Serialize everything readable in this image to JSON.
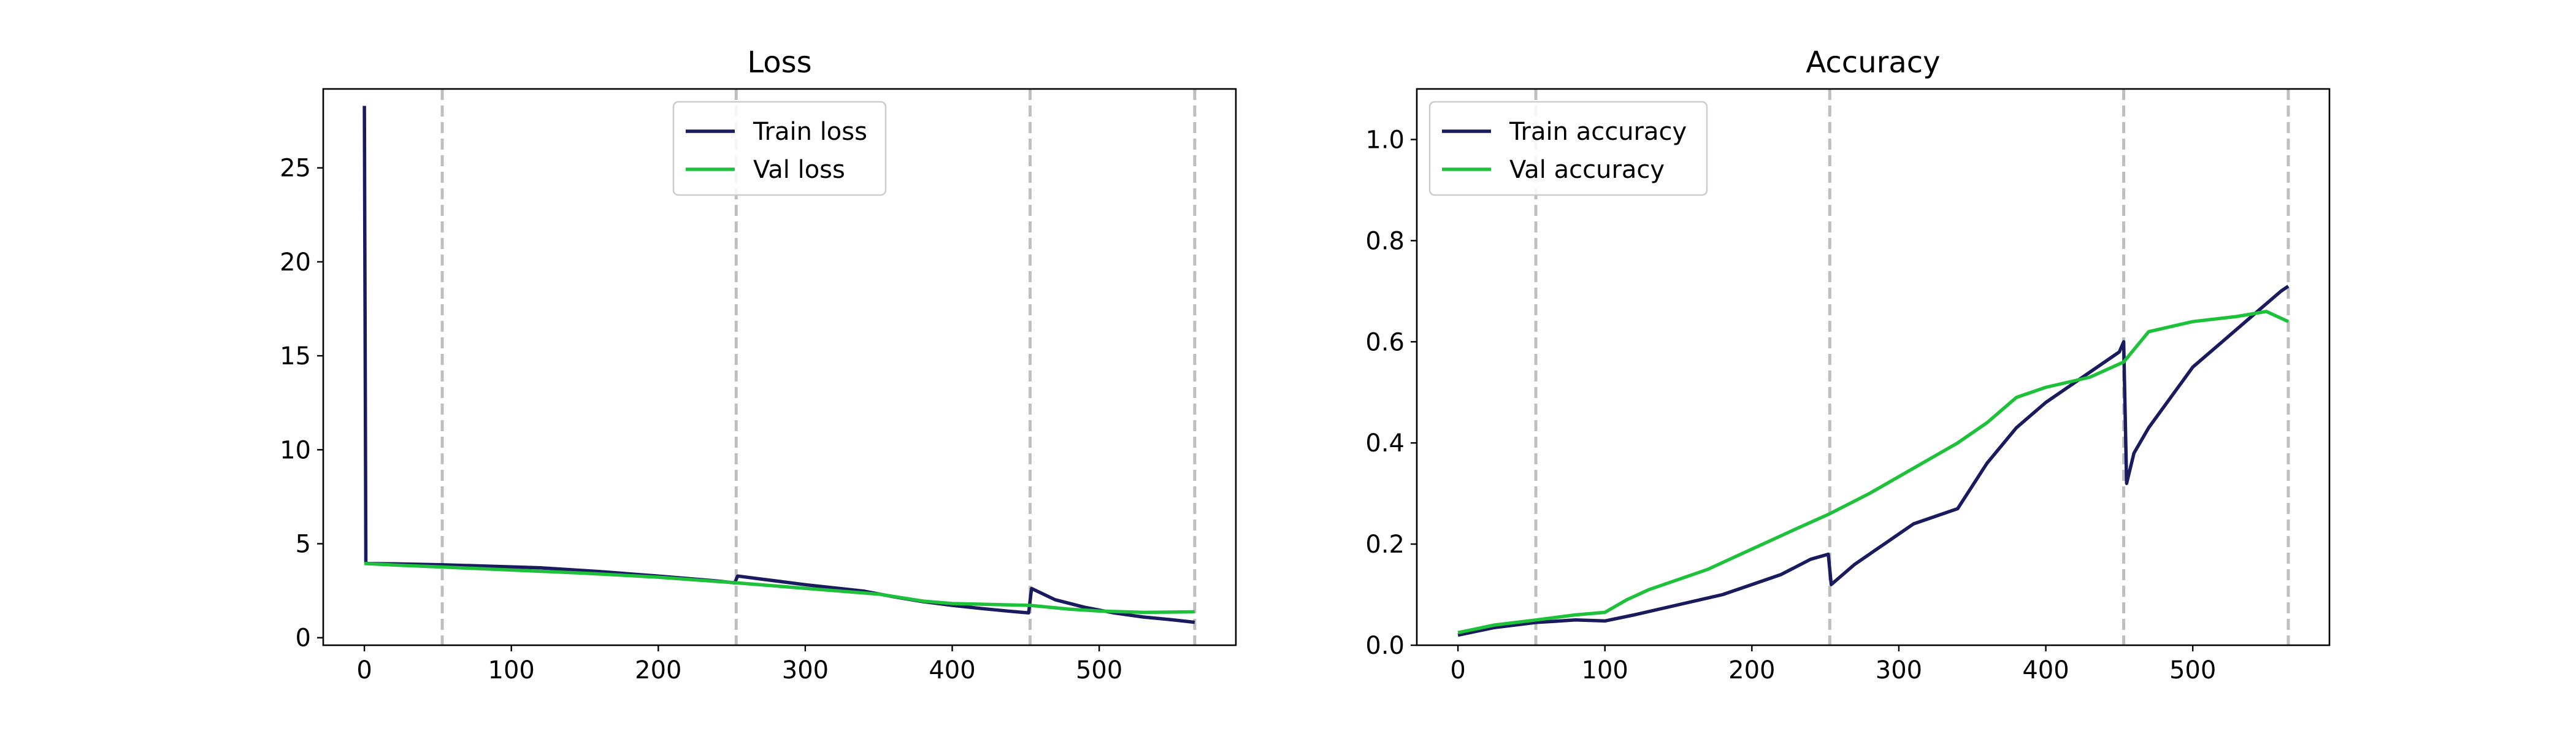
{
  "figure": {
    "background": "#ffffff",
    "axis_color": "#000000",
    "epoch_marker_color": "#bfbfbf"
  },
  "chart_data": [
    {
      "type": "line",
      "title": "Loss",
      "xlabel": "",
      "ylabel": "",
      "xlim": [
        -28,
        593
      ],
      "ylim": [
        -0.4,
        29.2
      ],
      "xticks": [
        0,
        100,
        200,
        300,
        400,
        500
      ],
      "yticks": [
        0,
        5,
        10,
        15,
        20,
        25
      ],
      "grid": false,
      "legend_position": "upper center",
      "vlines": [
        53,
        253,
        453,
        565
      ],
      "series": [
        {
          "name": "Train loss",
          "color": "#1a1a5e",
          "x": [
            0,
            1,
            2,
            20,
            53,
            80,
            120,
            160,
            200,
            240,
            252,
            254,
            270,
            300,
            340,
            360,
            380,
            400,
            420,
            440,
            452,
            454,
            470,
            490,
            510,
            530,
            550,
            565
          ],
          "y": [
            28.3,
            4.0,
            3.95,
            3.93,
            3.88,
            3.82,
            3.72,
            3.52,
            3.28,
            3.02,
            2.92,
            3.28,
            3.12,
            2.82,
            2.48,
            2.18,
            1.92,
            1.72,
            1.55,
            1.4,
            1.32,
            2.62,
            2.02,
            1.62,
            1.32,
            1.1,
            0.95,
            0.82
          ]
        },
        {
          "name": "Val loss",
          "color": "#1ec23a",
          "x": [
            0,
            20,
            53,
            100,
            150,
            200,
            253,
            300,
            350,
            380,
            400,
            453,
            480,
            500,
            530,
            565
          ],
          "y": [
            3.95,
            3.87,
            3.76,
            3.6,
            3.43,
            3.22,
            2.92,
            2.63,
            2.32,
            1.95,
            1.82,
            1.72,
            1.52,
            1.42,
            1.35,
            1.38
          ]
        }
      ]
    },
    {
      "type": "line",
      "title": "Accuracy",
      "xlabel": "",
      "ylabel": "",
      "xlim": [
        -28,
        593
      ],
      "ylim": [
        0.0,
        1.1
      ],
      "xticks": [
        0,
        100,
        200,
        300,
        400,
        500
      ],
      "yticks": [
        0.0,
        0.2,
        0.4,
        0.6,
        0.8,
        1.0
      ],
      "ytick_labels": [
        "0.0",
        "0.2",
        "0.4",
        "0.6",
        "0.8",
        "1.0"
      ],
      "grid": false,
      "legend_position": "upper left",
      "vlines": [
        53,
        253,
        453,
        565
      ],
      "series": [
        {
          "name": "Train accuracy",
          "color": "#1a1a5e",
          "x": [
            0,
            25,
            53,
            80,
            100,
            120,
            150,
            180,
            200,
            220,
            240,
            252,
            254,
            270,
            290,
            310,
            330,
            340,
            360,
            380,
            400,
            420,
            440,
            450,
            453,
            455,
            460,
            470,
            480,
            500,
            520,
            540,
            560,
            565
          ],
          "y": [
            0.02,
            0.035,
            0.045,
            0.05,
            0.048,
            0.06,
            0.08,
            0.1,
            0.12,
            0.14,
            0.17,
            0.18,
            0.12,
            0.16,
            0.2,
            0.24,
            0.26,
            0.27,
            0.36,
            0.43,
            0.48,
            0.52,
            0.56,
            0.58,
            0.6,
            0.32,
            0.38,
            0.43,
            0.47,
            0.55,
            0.6,
            0.65,
            0.7,
            0.71
          ]
        },
        {
          "name": "Val accuracy",
          "color": "#1ec23a",
          "x": [
            0,
            25,
            53,
            80,
            100,
            115,
            130,
            150,
            170,
            200,
            230,
            253,
            280,
            310,
            340,
            360,
            380,
            400,
            430,
            453,
            470,
            500,
            530,
            550,
            565
          ],
          "y": [
            0.025,
            0.04,
            0.05,
            0.06,
            0.065,
            0.09,
            0.11,
            0.13,
            0.15,
            0.19,
            0.23,
            0.26,
            0.3,
            0.35,
            0.4,
            0.44,
            0.49,
            0.51,
            0.53,
            0.56,
            0.62,
            0.64,
            0.65,
            0.66,
            0.64
          ]
        }
      ]
    }
  ]
}
